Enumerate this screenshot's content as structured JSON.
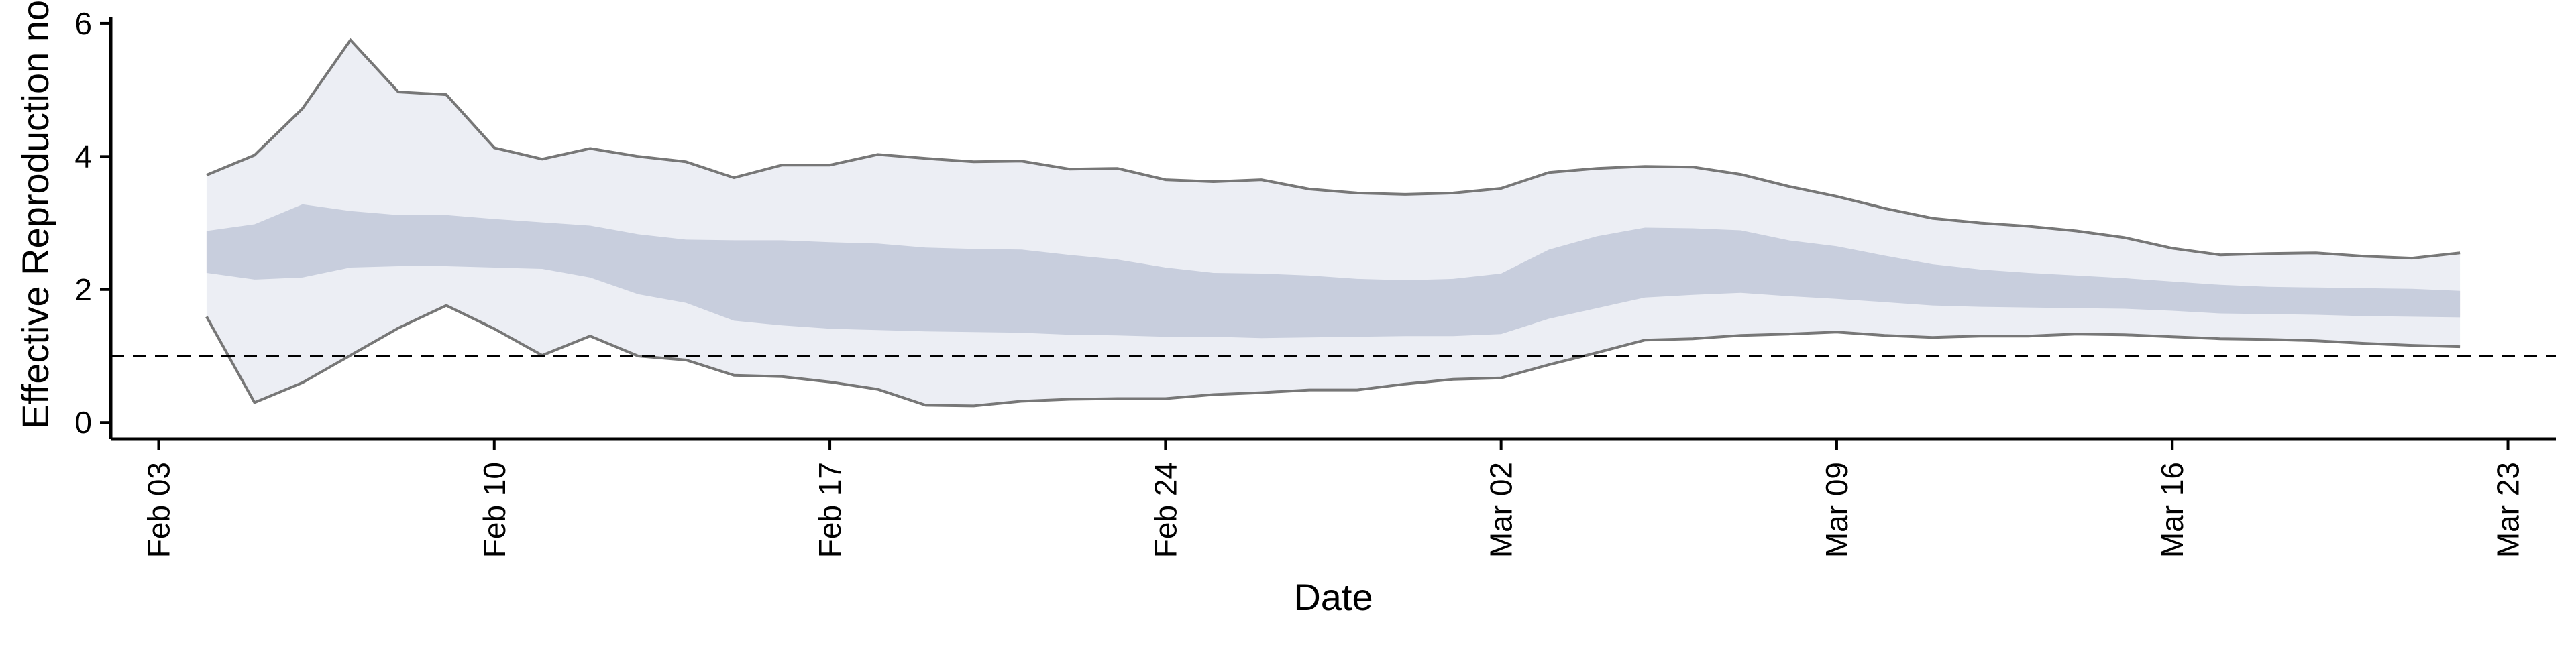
{
  "chart_data": {
    "type": "area",
    "title": "",
    "xlabel": "Date",
    "ylabel": "Effective Reproduction no",
    "x_ticks": [
      "Feb 03",
      "Feb 10",
      "Feb 17",
      "Feb 24",
      "Mar 02",
      "Mar 09",
      "Mar 16",
      "Mar 23"
    ],
    "y_ticks": [
      0,
      2,
      4,
      6
    ],
    "ylim": [
      -0.25,
      6.1
    ],
    "xlim": [
      "2020-02-02",
      "2020-03-24"
    ],
    "reference_line": {
      "y": 1,
      "style": "dashed"
    },
    "grid": false,
    "legend": "none",
    "colors": {
      "outer_band": "#eceef4",
      "inner_band": "#c8cedd",
      "bound_lines": "#777777",
      "reference_line": "#000000",
      "axis": "#000000"
    },
    "x": [
      "2020-02-04",
      "2020-02-05",
      "2020-02-06",
      "2020-02-07",
      "2020-02-08",
      "2020-02-09",
      "2020-02-10",
      "2020-02-11",
      "2020-02-12",
      "2020-02-13",
      "2020-02-14",
      "2020-02-15",
      "2020-02-16",
      "2020-02-17",
      "2020-02-18",
      "2020-02-19",
      "2020-02-20",
      "2020-02-21",
      "2020-02-22",
      "2020-02-23",
      "2020-02-24",
      "2020-02-25",
      "2020-02-26",
      "2020-02-27",
      "2020-02-28",
      "2020-02-29",
      "2020-03-01",
      "2020-03-02",
      "2020-03-03",
      "2020-03-04",
      "2020-03-05",
      "2020-03-06",
      "2020-03-07",
      "2020-03-08",
      "2020-03-09",
      "2020-03-10",
      "2020-03-11",
      "2020-03-12",
      "2020-03-13",
      "2020-03-14",
      "2020-03-15",
      "2020-03-16",
      "2020-03-17",
      "2020-03-18",
      "2020-03-19",
      "2020-03-20",
      "2020-03-21",
      "2020-03-22"
    ],
    "series": [
      {
        "values_upper_90": [
          3.72,
          4.02,
          4.72,
          5.75,
          4.97,
          4.93,
          4.13,
          3.96,
          4.12,
          4.0,
          3.92,
          3.68,
          3.87,
          3.87,
          4.03,
          3.97,
          3.92,
          3.93,
          3.81,
          3.82,
          3.65,
          3.62,
          3.65,
          3.51,
          3.45,
          3.43,
          3.45,
          3.52,
          3.76,
          3.82,
          3.85,
          3.84,
          3.73,
          3.55,
          3.4,
          3.22,
          3.07,
          3.0,
          2.95,
          2.88,
          2.78,
          2.62,
          2.52,
          2.54,
          2.55,
          2.5,
          2.47,
          2.55
        ],
        "values_upper_50": [
          2.88,
          2.98,
          3.28,
          3.18,
          3.12,
          3.12,
          3.06,
          3.01,
          2.96,
          2.83,
          2.75,
          2.74,
          2.74,
          2.71,
          2.69,
          2.63,
          2.61,
          2.6,
          2.52,
          2.45,
          2.33,
          2.25,
          2.24,
          2.21,
          2.16,
          2.14,
          2.16,
          2.24,
          2.6,
          2.8,
          2.93,
          2.92,
          2.89,
          2.74,
          2.65,
          2.51,
          2.38,
          2.3,
          2.25,
          2.21,
          2.17,
          2.12,
          2.07,
          2.04,
          2.03,
          2.02,
          2.01,
          1.98
        ],
        "values_lower_50": [
          2.25,
          2.15,
          2.18,
          2.33,
          2.35,
          2.35,
          2.33,
          2.31,
          2.18,
          1.93,
          1.8,
          1.53,
          1.46,
          1.41,
          1.39,
          1.37,
          1.36,
          1.35,
          1.32,
          1.31,
          1.29,
          1.29,
          1.27,
          1.28,
          1.29,
          1.3,
          1.3,
          1.33,
          1.56,
          1.72,
          1.88,
          1.92,
          1.95,
          1.9,
          1.86,
          1.81,
          1.76,
          1.74,
          1.73,
          1.72,
          1.71,
          1.68,
          1.64,
          1.63,
          1.62,
          1.6,
          1.59,
          1.58
        ],
        "values_lower_90": [
          1.59,
          0.3,
          0.6,
          1.01,
          1.42,
          1.76,
          1.41,
          1.01,
          1.3,
          1.0,
          0.94,
          0.71,
          0.69,
          0.61,
          0.5,
          0.26,
          0.25,
          0.32,
          0.35,
          0.36,
          0.36,
          0.42,
          0.45,
          0.49,
          0.49,
          0.58,
          0.65,
          0.67,
          0.87,
          1.05,
          1.24,
          1.26,
          1.31,
          1.33,
          1.36,
          1.31,
          1.28,
          1.3,
          1.3,
          1.33,
          1.32,
          1.29,
          1.26,
          1.25,
          1.23,
          1.19,
          1.16,
          1.14
        ]
      }
    ]
  }
}
